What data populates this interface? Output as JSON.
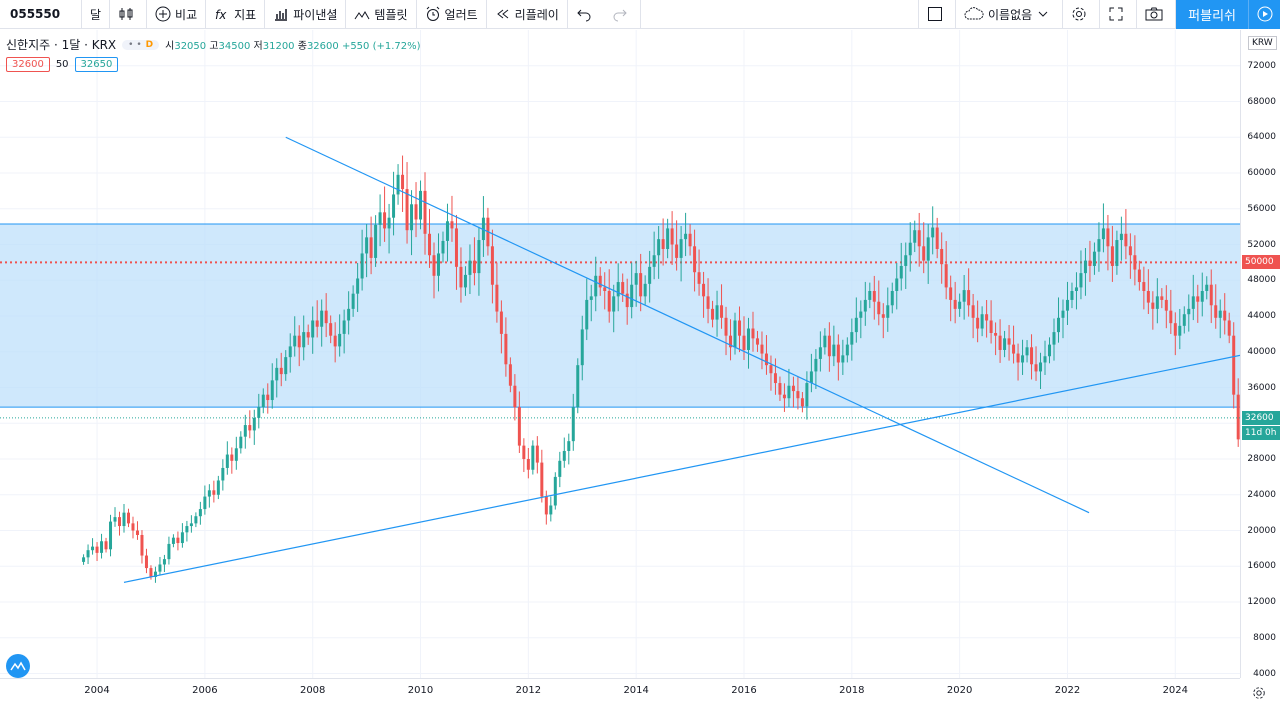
{
  "toolbar": {
    "symbol": "055550",
    "interval": "달",
    "compare": "비교",
    "indicators": "지표",
    "financials": "파이낸셜",
    "templates": "템플릿",
    "alert": "얼러트",
    "replay": "리플레이",
    "layout_name": "이름없음",
    "publish": "퍼블리쉬"
  },
  "legend": {
    "title": "신한지주 · 1달 · KRX",
    "open_label": "시",
    "open": "32050",
    "high_label": "고",
    "high": "34500",
    "low_label": "저",
    "low": "31200",
    "close_label": "종",
    "close": "32600",
    "change": "+550 (+1.72%)",
    "pill_letter": "D",
    "bid": "32600",
    "spread": "50",
    "ask": "32650"
  },
  "axis": {
    "currency": "KRW",
    "last_price": "32600",
    "countdown": "11d 0h",
    "level_tag": "50000"
  },
  "colors": {
    "up": "#26a69a",
    "down": "#ef5350",
    "accent": "#2196f3",
    "zone_fill": "#bbdefb"
  },
  "chart_data": {
    "type": "candlestick",
    "yticks": [
      4000,
      8000,
      12000,
      16000,
      20000,
      24000,
      28000,
      32000,
      36000,
      40000,
      44000,
      48000,
      52000,
      56000,
      60000,
      64000,
      68000,
      72000
    ],
    "xticks": [
      "2004",
      "2006",
      "2008",
      "2010",
      "2012",
      "2014",
      "2016",
      "2018",
      "2020",
      "2022",
      "2024"
    ],
    "ylim": [
      3500,
      76000
    ],
    "xlim": [
      2002.2,
      2025.2
    ],
    "zone": {
      "low": 33800,
      "high": 54300
    },
    "horizontal_level": 50000,
    "trendlines": [
      {
        "from": [
          2004.5,
          14200
        ],
        "to": [
          2025.2,
          39600
        ]
      },
      {
        "from": [
          2007.5,
          64000
        ],
        "to": [
          2022.4,
          22000
        ]
      }
    ],
    "closes": [
      17000,
      17800,
      18200,
      17500,
      18800,
      17900,
      21000,
      21500,
      20500,
      22000,
      20800,
      20000,
      19500,
      17200,
      15800,
      14800,
      15400,
      16200,
      16800,
      18500,
      19200,
      18600,
      19800,
      20500,
      20800,
      21600,
      22400,
      23800,
      24500,
      24000,
      25600,
      27000,
      28500,
      27800,
      29200,
      30500,
      31800,
      31200,
      32600,
      33800,
      35200,
      34600,
      36800,
      38200,
      37500,
      39400,
      40600,
      41800,
      40500,
      42200,
      41600,
      43500,
      42800,
      44600,
      43200,
      41800,
      40600,
      42000,
      43500,
      44800,
      46500,
      48200,
      51000,
      52800,
      50500,
      54200,
      55600,
      53800,
      55000,
      57600,
      59800,
      58200,
      53600,
      56500,
      54800,
      58000,
      53200,
      50800,
      48500,
      51000,
      52400,
      54600,
      53800,
      49500,
      47200,
      48600,
      50200,
      48800,
      52500,
      55000,
      51800,
      47500,
      44500,
      42000,
      38600,
      36200,
      33800,
      29500,
      28000,
      26800,
      29500,
      27600,
      23800,
      21800,
      22800,
      26000,
      27800,
      28900,
      30000,
      33800,
      38500,
      42500,
      45800,
      46200,
      48500,
      47200,
      46800,
      44500,
      46200,
      47800,
      46500,
      45000,
      47500,
      48800,
      46200,
      47600,
      49500,
      50800,
      52600,
      51500,
      53800,
      52000,
      50500,
      52600,
      53200,
      51800,
      48900,
      47600,
      46200,
      44800,
      43600,
      45200,
      43800,
      41800,
      40500,
      43500,
      41800,
      40200,
      42600,
      41500,
      40800,
      39800,
      38500,
      37600,
      36500,
      35200,
      34800,
      36200,
      35600,
      34800,
      33900,
      36500,
      37800,
      39200,
      40500,
      41800,
      39500,
      40800,
      38800,
      39600,
      40800,
      42200,
      43800,
      44500,
      45800,
      46800,
      45600,
      44200,
      43800,
      45200,
      46800,
      48200,
      49600,
      50800,
      52200,
      53600,
      51800,
      50200,
      52800,
      53900,
      51500,
      49800,
      47200,
      45800,
      44800,
      45600,
      46900,
      45200,
      43800,
      42600,
      44200,
      43500,
      42100,
      41800,
      40200,
      41500,
      40800,
      39800,
      38800,
      39600,
      40500,
      38600,
      37800,
      38800,
      39500,
      40800,
      42200,
      43800,
      44600,
      45800,
      46800,
      47200,
      48800,
      50200,
      49600,
      51200,
      52600,
      53800,
      51800,
      49600,
      52500,
      53200,
      51800,
      50800,
      49200,
      47800,
      46800,
      45500,
      44800,
      46200,
      45800,
      44600,
      43200,
      41800,
      42900,
      44200,
      44800,
      46200,
      45600,
      46800,
      47500,
      45200,
      43800,
      44600,
      43500,
      41800,
      35200,
      30200,
      28400,
      27200,
      29800,
      30800,
      29600,
      28800,
      30200,
      31000,
      28600,
      27800,
      29400,
      31800,
      33200,
      32600
    ]
  }
}
